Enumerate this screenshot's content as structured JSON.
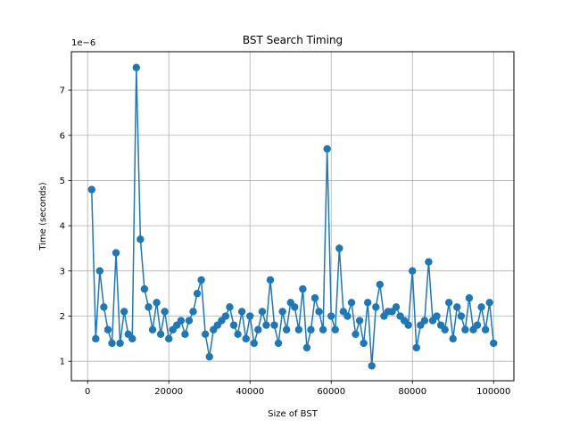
{
  "chart_data": {
    "type": "line",
    "title": "BST Search Timing",
    "xlabel": "Size of BST",
    "ylabel": "Time (seconds)",
    "y_offset_label": "1e−6",
    "y_scale_factor": 1e-06,
    "xlim": [
      -4000,
      105000
    ],
    "ylim": [
      0.57,
      7.85
    ],
    "x_ticks": [
      0,
      20000,
      40000,
      60000,
      80000,
      100000
    ],
    "x_tick_labels": [
      "0",
      "20000",
      "40000",
      "60000",
      "80000",
      "100000"
    ],
    "y_ticks": [
      1,
      2,
      3,
      4,
      5,
      6,
      7
    ],
    "y_tick_labels": [
      "1",
      "2",
      "3",
      "4",
      "5",
      "6",
      "7"
    ],
    "grid": true,
    "series_color": "#1f77b4",
    "marker": "circle",
    "x": [
      1000,
      2000,
      3000,
      4000,
      5000,
      6000,
      7000,
      8000,
      9000,
      10000,
      11000,
      12000,
      13000,
      14000,
      15000,
      16000,
      17000,
      18000,
      19000,
      20000,
      21000,
      22000,
      23000,
      24000,
      25000,
      26000,
      27000,
      28000,
      29000,
      30000,
      31000,
      32000,
      33000,
      34000,
      35000,
      36000,
      37000,
      38000,
      39000,
      40000,
      41000,
      42000,
      43000,
      44000,
      45000,
      46000,
      47000,
      48000,
      49000,
      50000,
      51000,
      52000,
      53000,
      54000,
      55000,
      56000,
      57000,
      58000,
      59000,
      60000,
      61000,
      62000,
      63000,
      64000,
      65000,
      66000,
      67000,
      68000,
      69000,
      70000,
      71000,
      72000,
      73000,
      74000,
      75000,
      76000,
      77000,
      78000,
      79000,
      80000,
      81000,
      82000,
      83000,
      84000,
      85000,
      86000,
      87000,
      88000,
      89000,
      90000,
      91000,
      92000,
      93000,
      94000,
      95000,
      96000,
      97000,
      98000,
      99000,
      100000
    ],
    "y": [
      4.8,
      1.5,
      3.0,
      2.2,
      1.7,
      1.4,
      3.4,
      1.4,
      2.1,
      1.6,
      1.5,
      7.5,
      3.7,
      2.6,
      2.2,
      1.7,
      2.3,
      1.6,
      2.1,
      1.5,
      1.7,
      1.8,
      1.9,
      1.6,
      1.9,
      2.1,
      2.5,
      2.8,
      1.6,
      1.1,
      1.7,
      1.8,
      1.9,
      2.0,
      2.2,
      1.8,
      1.6,
      2.1,
      1.5,
      2.0,
      1.4,
      1.7,
      2.1,
      1.8,
      2.8,
      1.8,
      1.4,
      2.1,
      1.7,
      2.3,
      2.2,
      1.7,
      2.6,
      1.3,
      1.7,
      2.4,
      2.1,
      1.7,
      5.7,
      2.0,
      1.7,
      3.5,
      2.1,
      2.0,
      2.3,
      1.6,
      1.9,
      1.4,
      2.3,
      0.9,
      2.2,
      2.7,
      2.0,
      2.1,
      2.1,
      2.2,
      2.0,
      1.9,
      1.8,
      3.0,
      1.3,
      1.8,
      1.9,
      3.2,
      1.9,
      2.0,
      1.8,
      1.7,
      2.3,
      1.5,
      2.2,
      2.0,
      1.7,
      2.4,
      1.7,
      1.8,
      2.2,
      1.7,
      2.3,
      1.4
    ]
  }
}
